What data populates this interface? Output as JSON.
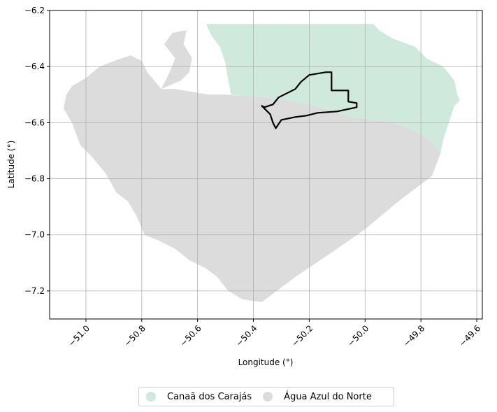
{
  "chart_data": {
    "type": "map",
    "xlabel": "Longitude (°)",
    "ylabel": "Latitude (°)",
    "xlim": [
      -51.13,
      -49.58
    ],
    "ylim": [
      -7.3,
      -6.2
    ],
    "x_ticks": [
      "−51.0",
      "−50.8",
      "−50.6",
      "−50.4",
      "−50.2",
      "−50.0",
      "−49.8",
      "−49.6"
    ],
    "y_ticks": [
      "−6.2",
      "−6.4",
      "−6.6",
      "−6.8",
      "−7.0",
      "−7.2"
    ],
    "grid": true,
    "legend_position": "bottom-center",
    "regions": [
      {
        "name": "Canaã dos Carajás",
        "color": "#cfeadd"
      },
      {
        "name": "Água Azul do Norte",
        "color": "#dcdcdc"
      }
    ],
    "highlight_outline": {
      "color": "#000000"
    }
  },
  "legend": {
    "items": [
      {
        "label": "Canaã dos Carajás",
        "color": "#cfeadd"
      },
      {
        "label": "Água Azul do Norte",
        "color": "#dcdcdc"
      }
    ]
  }
}
